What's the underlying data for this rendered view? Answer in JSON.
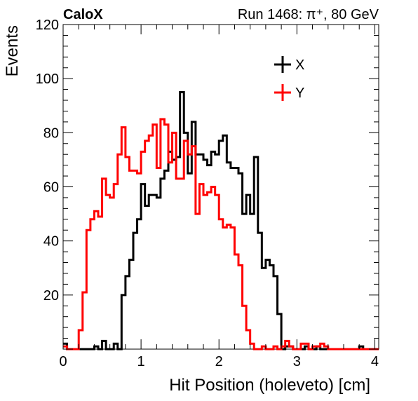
{
  "chart_data": {
    "type": "histogram-step",
    "title_left": "CaloX",
    "title_right": "Run 1468: π⁺, 80 GeV",
    "xlabel": "Hit Position (holeveto) [cm]",
    "ylabel": "Events",
    "xlim": [
      0,
      4.05
    ],
    "ylim": [
      0,
      120
    ],
    "x_major_ticks": [
      0,
      1,
      2,
      3,
      4
    ],
    "y_major_ticks": [
      20,
      40,
      60,
      80,
      100,
      120
    ],
    "x_tick_labels": [
      "0",
      "1",
      "2",
      "3",
      "4"
    ],
    "y_tick_labels": [
      "20",
      "40",
      "60",
      "80",
      "100",
      "120"
    ],
    "legend_position": "top-right",
    "bin_width": 0.05,
    "series": [
      {
        "name": "X",
        "color": "#000000",
        "bins": [
          [
            0.0,
            2
          ],
          [
            0.05,
            0
          ],
          [
            0.1,
            0
          ],
          [
            0.15,
            0
          ],
          [
            0.2,
            0
          ],
          [
            0.25,
            0
          ],
          [
            0.3,
            0
          ],
          [
            0.35,
            0
          ],
          [
            0.4,
            1
          ],
          [
            0.45,
            0
          ],
          [
            0.5,
            3
          ],
          [
            0.55,
            0
          ],
          [
            0.6,
            0
          ],
          [
            0.65,
            2
          ],
          [
            0.7,
            0
          ],
          [
            0.75,
            20
          ],
          [
            0.8,
            27
          ],
          [
            0.85,
            33
          ],
          [
            0.9,
            43
          ],
          [
            0.95,
            48
          ],
          [
            1.0,
            61
          ],
          [
            1.05,
            53
          ],
          [
            1.1,
            57
          ],
          [
            1.15,
            57
          ],
          [
            1.2,
            56
          ],
          [
            1.25,
            63
          ],
          [
            1.3,
            66
          ],
          [
            1.35,
            73
          ],
          [
            1.4,
            70
          ],
          [
            1.45,
            71
          ],
          [
            1.5,
            95
          ],
          [
            1.55,
            80
          ],
          [
            1.6,
            65
          ],
          [
            1.65,
            84
          ],
          [
            1.7,
            72
          ],
          [
            1.75,
            72
          ],
          [
            1.8,
            70
          ],
          [
            1.85,
            68
          ],
          [
            1.9,
            73
          ],
          [
            1.95,
            72
          ],
          [
            2.0,
            77
          ],
          [
            2.05,
            79
          ],
          [
            2.1,
            69
          ],
          [
            2.15,
            67
          ],
          [
            2.2,
            67
          ],
          [
            2.25,
            65
          ],
          [
            2.3,
            50
          ],
          [
            2.35,
            57
          ],
          [
            2.4,
            50
          ],
          [
            2.45,
            71
          ],
          [
            2.5,
            43
          ],
          [
            2.55,
            30
          ],
          [
            2.6,
            33
          ],
          [
            2.65,
            31
          ],
          [
            2.7,
            27
          ],
          [
            2.75,
            13
          ],
          [
            2.8,
            0
          ],
          [
            2.85,
            1
          ],
          [
            2.9,
            1
          ],
          [
            2.95,
            0
          ],
          [
            3.0,
            0
          ],
          [
            3.05,
            0
          ],
          [
            3.1,
            1
          ],
          [
            3.15,
            0
          ],
          [
            3.2,
            0
          ],
          [
            3.25,
            1
          ],
          [
            3.3,
            0
          ],
          [
            3.35,
            0
          ],
          [
            3.4,
            0
          ],
          [
            3.45,
            0
          ],
          [
            3.5,
            0
          ],
          [
            3.55,
            0
          ],
          [
            3.6,
            0
          ],
          [
            3.65,
            0
          ],
          [
            3.7,
            0
          ],
          [
            3.75,
            0
          ],
          [
            3.8,
            1
          ],
          [
            3.85,
            0
          ],
          [
            3.9,
            0
          ],
          [
            3.95,
            0
          ],
          [
            4.0,
            0
          ]
        ]
      },
      {
        "name": "Y",
        "color": "#ff0000",
        "bins": [
          [
            0.0,
            1
          ],
          [
            0.05,
            0
          ],
          [
            0.1,
            0
          ],
          [
            0.15,
            0
          ],
          [
            0.2,
            7
          ],
          [
            0.25,
            21
          ],
          [
            0.3,
            44
          ],
          [
            0.35,
            48
          ],
          [
            0.4,
            51
          ],
          [
            0.45,
            49
          ],
          [
            0.5,
            63
          ],
          [
            0.55,
            57
          ],
          [
            0.6,
            56
          ],
          [
            0.65,
            61
          ],
          [
            0.7,
            72
          ],
          [
            0.75,
            82
          ],
          [
            0.8,
            71
          ],
          [
            0.85,
            66
          ],
          [
            0.9,
            66
          ],
          [
            0.95,
            65
          ],
          [
            1.0,
            73
          ],
          [
            1.05,
            77
          ],
          [
            1.1,
            79
          ],
          [
            1.15,
            83
          ],
          [
            1.2,
            67
          ],
          [
            1.25,
            85
          ],
          [
            1.3,
            83
          ],
          [
            1.35,
            69
          ],
          [
            1.4,
            80
          ],
          [
            1.45,
            63
          ],
          [
            1.5,
            63
          ],
          [
            1.55,
            77
          ],
          [
            1.6,
            72
          ],
          [
            1.65,
            75
          ],
          [
            1.7,
            50
          ],
          [
            1.75,
            61
          ],
          [
            1.8,
            57
          ],
          [
            1.85,
            58
          ],
          [
            1.9,
            60
          ],
          [
            1.95,
            57
          ],
          [
            2.0,
            48
          ],
          [
            2.05,
            45
          ],
          [
            2.1,
            46
          ],
          [
            2.15,
            45
          ],
          [
            2.2,
            35
          ],
          [
            2.25,
            31
          ],
          [
            2.3,
            16
          ],
          [
            2.35,
            7
          ],
          [
            2.4,
            2
          ],
          [
            2.45,
            0
          ],
          [
            2.5,
            0
          ],
          [
            2.55,
            1
          ],
          [
            2.6,
            0
          ],
          [
            2.65,
            0
          ],
          [
            2.7,
            1
          ],
          [
            2.75,
            0
          ],
          [
            2.8,
            1
          ],
          [
            2.85,
            3
          ],
          [
            2.9,
            1
          ],
          [
            2.95,
            0
          ],
          [
            3.0,
            0
          ],
          [
            3.05,
            2
          ],
          [
            3.1,
            2
          ],
          [
            3.15,
            0
          ],
          [
            3.2,
            1
          ],
          [
            3.25,
            1
          ],
          [
            3.3,
            2
          ],
          [
            3.35,
            1
          ],
          [
            3.4,
            0
          ],
          [
            3.45,
            0
          ],
          [
            3.5,
            0
          ],
          [
            3.55,
            0
          ],
          [
            3.6,
            0
          ],
          [
            3.65,
            0
          ],
          [
            3.7,
            0
          ],
          [
            3.75,
            0
          ],
          [
            3.8,
            0
          ],
          [
            3.85,
            0
          ],
          [
            3.9,
            0
          ],
          [
            3.95,
            0
          ],
          [
            4.0,
            0
          ]
        ]
      }
    ]
  }
}
